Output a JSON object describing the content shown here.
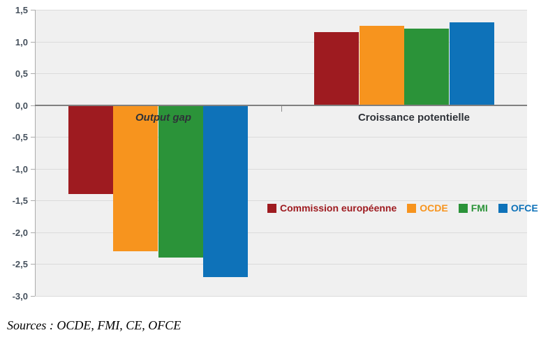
{
  "chart_data": {
    "type": "bar",
    "categories": [
      "Output gap",
      "Croissance potentielle"
    ],
    "series": [
      {
        "name": "Commission européenne",
        "color": "#9E1B20",
        "values": [
          -1.4,
          1.15
        ]
      },
      {
        "name": "OCDE",
        "color": "#F7941E",
        "values": [
          -2.3,
          1.25
        ]
      },
      {
        "name": "FMI",
        "color": "#2B9339",
        "values": [
          -2.4,
          1.2
        ]
      },
      {
        "name": "OFCE",
        "color": "#0E72B9",
        "values": [
          -2.7,
          1.3
        ]
      }
    ],
    "title": "",
    "xlabel": "",
    "ylabel": "",
    "ylim": [
      -3.0,
      1.5
    ],
    "ytick_step": 0.5,
    "ytick_labels": [
      "1,5",
      "1,0",
      "0,5",
      "0,0",
      "-0,5",
      "-1,0",
      "-1,5",
      "-2,0",
      "-2,5",
      "-3,0"
    ],
    "grid": true,
    "legend_position": "inside-middle-right",
    "plot_bg_color": "#F0F0F0",
    "decimal_separator": ","
  },
  "footer": {
    "sources": "Sources : OCDE, FMI, CE, OFCE"
  }
}
